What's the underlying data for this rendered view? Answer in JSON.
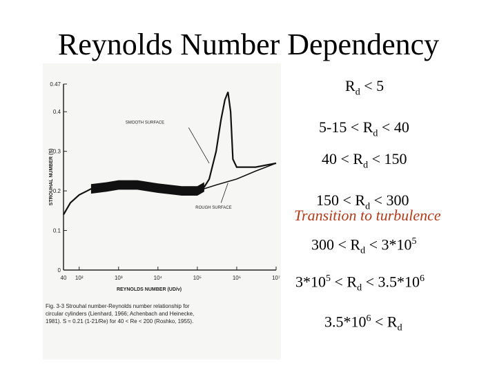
{
  "slide": {
    "title": "Reynolds Number Dependency",
    "note": "Transition to turbulence"
  },
  "regimes": [
    {
      "left": "",
      "sub": "d",
      "right": "< 5"
    },
    {
      "left": "5-15 <",
      "sub": "d",
      "right": "< 40"
    },
    {
      "left": "40 <",
      "sub": "d",
      "right": "< 150"
    },
    {
      "left": "150 <",
      "sub": "d",
      "right": "< 300"
    },
    {
      "left": "300 <",
      "sub": "d",
      "right": "< 3*10",
      "sup": "5"
    },
    {
      "pre": "3*10",
      "preSup": "5",
      "left": "<",
      "sub": "d",
      "right": "< 3.5*10",
      "sup": "6"
    },
    {
      "pre": "3.5*10",
      "preSup": "6",
      "left": "<",
      "sub": "d",
      "right": ""
    }
  ],
  "chart_data": {
    "type": "line",
    "ylabel": "STROUHAL NUMBER (S)",
    "xlabel": "REYNOLDS NUMBER (UD/ν)",
    "x_scale": "log",
    "xlim": [
      40,
      10000000
    ],
    "ylim": [
      0,
      0.47
    ],
    "x_tick_labels": [
      "40",
      "10²",
      "10³",
      "10⁴",
      "10⁵",
      "10⁶",
      "10⁷"
    ],
    "y_tick_labels": [
      "0.47",
      "0.4",
      "0.3",
      "0.2",
      "0.1",
      "0"
    ],
    "series": [
      {
        "name": "SMOOTH SURFACE",
        "x": [
          40,
          60,
          100,
          200,
          500,
          1000,
          3000,
          10000,
          40000,
          100000,
          150000,
          200000,
          300000,
          400000,
          500000,
          600000,
          700000,
          800000,
          1000000,
          3000000,
          10000000
        ],
        "y": [
          0.14,
          0.17,
          0.19,
          0.205,
          0.21,
          0.215,
          0.215,
          0.207,
          0.2,
          0.2,
          0.21,
          0.23,
          0.3,
          0.38,
          0.43,
          0.45,
          0.4,
          0.28,
          0.26,
          0.26,
          0.27
        ]
      },
      {
        "name": "ROUGH SURFACE",
        "x": [
          100000,
          300000,
          1000000,
          3000000,
          10000000
        ],
        "y": [
          0.2,
          0.215,
          0.23,
          0.25,
          0.27
        ]
      }
    ],
    "annotations": [
      "SMOOTH SURFACE",
      "ROUGH SURFACE"
    ],
    "caption": "Fig. 3-3 Strouhal number-Reynolds number relationship for circular cylinders (Lienhard, 1966; Achenbach and Heinecke, 1981). S ≈ 0.21 (1-21/Re) for 40 < Re < 200 (Roshko, 1955)."
  }
}
